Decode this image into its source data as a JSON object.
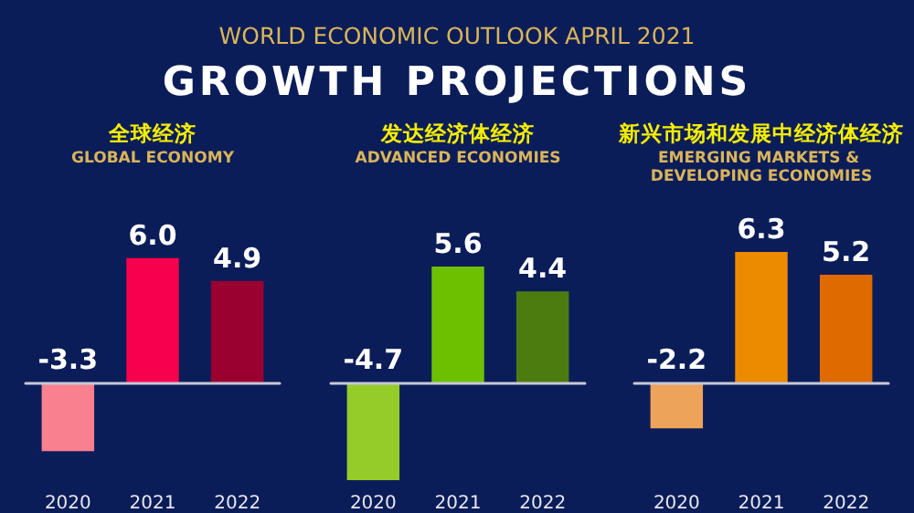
{
  "chart_data": [
    {
      "type": "other",
      "title": "GROWTH PROJECTIONS",
      "subtitle": "WORLD ECONOMIC OUTLOOK APRIL 2021"
    },
    {
      "type": "bar",
      "title": "全球经济",
      "subtitle": "GLOBAL ECONOMY",
      "categories": [
        "2020",
        "2021",
        "2022"
      ],
      "values": [
        -3.3,
        6.0,
        4.9
      ],
      "colors": [
        "#f9808f",
        "#f7004e",
        "#9a0030"
      ],
      "value_labels": [
        "-3.3",
        "6.0",
        "4.9"
      ]
    },
    {
      "type": "bar",
      "title": "发达经济体经济",
      "subtitle": "ADVANCED ECONOMIES",
      "categories": [
        "2020",
        "2021",
        "2022"
      ],
      "values": [
        -4.7,
        5.6,
        4.4
      ],
      "colors": [
        "#95cc2a",
        "#6cc000",
        "#4c7c10"
      ],
      "value_labels": [
        "-4.7",
        "5.6",
        "4.4"
      ]
    },
    {
      "type": "bar",
      "title": "新兴市场和发展中经济体经济",
      "subtitle": "EMERGING MARKETS & DEVELOPING ECONOMIES",
      "categories": [
        "2020",
        "2021",
        "2022"
      ],
      "values": [
        -2.2,
        6.3,
        5.2
      ],
      "colors": [
        "#eda35a",
        "#ec8a00",
        "#de6a00"
      ],
      "value_labels": [
        "-2.2",
        "6.3",
        "5.2"
      ]
    }
  ]
}
